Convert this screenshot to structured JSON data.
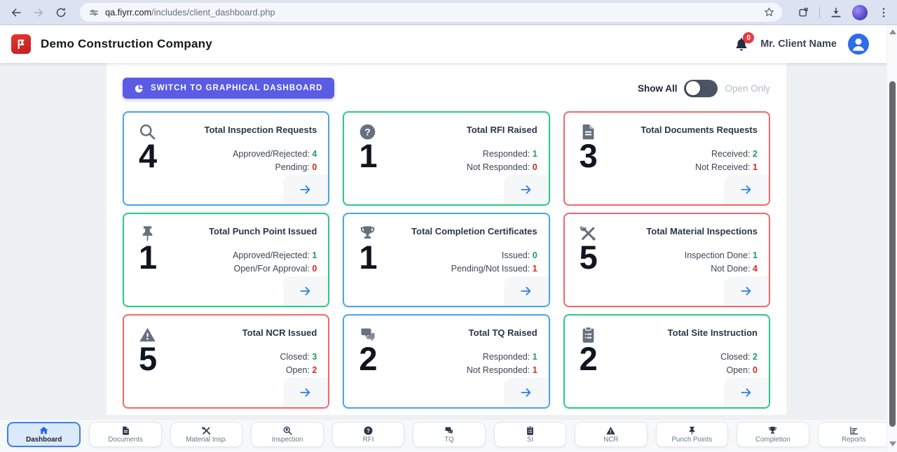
{
  "browser": {
    "url_host": "qa.fiyrr.com",
    "url_path": "/includes/client_dashboard.php"
  },
  "header": {
    "company_name": "Demo Construction Company",
    "notification_count": "0",
    "user_name": "Mr. Client Name"
  },
  "toolbar": {
    "switch_button_label": "SWITCH TO GRAPHICAL DASHBOARD",
    "toggle_left_label": "Show All",
    "toggle_right_label": "Open Only",
    "toggle_state": "Show All"
  },
  "colors": {
    "accent_blue": "#4BA5E5",
    "accent_green": "#2CC985",
    "accent_red": "#F16A6A",
    "value_green": "#17A05E",
    "value_red": "#D92626",
    "button_indigo": "#5A5CE4",
    "arrow_blue": "#2B7DE9"
  },
  "cards": [
    {
      "icon": "search-icon",
      "title": "Total Inspection Requests",
      "count": "4",
      "accent": "#4BA5E5",
      "stats": [
        {
          "label": "Approved/Rejected:",
          "value": "4",
          "color": "#17A05E"
        },
        {
          "label": "Pending:",
          "value": "0",
          "color": "#D92626"
        }
      ]
    },
    {
      "icon": "question-circle-icon",
      "title": "Total RFI Raised",
      "count": "1",
      "accent": "#2CC985",
      "stats": [
        {
          "label": "Responded:",
          "value": "1",
          "color": "#17A05E"
        },
        {
          "label": "Not Responded:",
          "value": "0",
          "color": "#D92626"
        }
      ]
    },
    {
      "icon": "document-icon",
      "title": "Total Documents Requests",
      "count": "3",
      "accent": "#F16A6A",
      "stats": [
        {
          "label": "Received:",
          "value": "2",
          "color": "#17A05E"
        },
        {
          "label": "Not Received:",
          "value": "1",
          "color": "#D92626"
        }
      ]
    },
    {
      "icon": "pushpin-icon",
      "title": "Total Punch Point Issued",
      "count": "1",
      "accent": "#2CC985",
      "stats": [
        {
          "label": "Approved/Rejected:",
          "value": "1",
          "color": "#17A05E"
        },
        {
          "label": "Open/For Approval:",
          "value": "0",
          "color": "#D92626"
        }
      ]
    },
    {
      "icon": "trophy-icon",
      "title": "Total Completion Certificates",
      "count": "1",
      "accent": "#4BA5E5",
      "stats": [
        {
          "label": "Issued:",
          "value": "0",
          "color": "#17A05E"
        },
        {
          "label": "Pending/Not Issued:",
          "value": "1",
          "color": "#D92626"
        }
      ]
    },
    {
      "icon": "tools-icon",
      "title": "Total Material Inspections",
      "count": "5",
      "accent": "#F16A6A",
      "stats": [
        {
          "label": "Inspection Done:",
          "value": "1",
          "color": "#17A05E"
        },
        {
          "label": "Not Done:",
          "value": "4",
          "color": "#D92626"
        }
      ]
    },
    {
      "icon": "warning-icon",
      "title": "Total NCR Issued",
      "count": "5",
      "accent": "#F16A6A",
      "stats": [
        {
          "label": "Closed:",
          "value": "3",
          "color": "#17A05E"
        },
        {
          "label": "Open:",
          "value": "2",
          "color": "#D92626"
        }
      ]
    },
    {
      "icon": "chat-icon",
      "title": "Total TQ Raised",
      "count": "2",
      "accent": "#4BA5E5",
      "stats": [
        {
          "label": "Responded:",
          "value": "1",
          "color": "#17A05E"
        },
        {
          "label": "Not Responded:",
          "value": "1",
          "color": "#D92626"
        }
      ]
    },
    {
      "icon": "clipboard-icon",
      "title": "Total Site Instruction",
      "count": "2",
      "accent": "#2CC985",
      "stats": [
        {
          "label": "Closed:",
          "value": "2",
          "color": "#17A05E"
        },
        {
          "label": "Open:",
          "value": "0",
          "color": "#D92626"
        }
      ]
    }
  ],
  "bottom_nav": {
    "items": [
      {
        "label": "Dashboard",
        "icon": "home-icon",
        "active": true
      },
      {
        "label": "Documents",
        "icon": "document-icon",
        "active": false
      },
      {
        "label": "Material Insp.",
        "icon": "tools-icon",
        "active": false
      },
      {
        "label": "Inspection",
        "icon": "inspection-search-icon",
        "active": false
      },
      {
        "label": "RFI",
        "icon": "question-circle-icon",
        "active": false
      },
      {
        "label": "TQ",
        "icon": "chat-icon",
        "active": false
      },
      {
        "label": "SI",
        "icon": "clipboard-icon",
        "active": false
      },
      {
        "label": "NCR",
        "icon": "warning-icon",
        "active": false
      },
      {
        "label": "Punch Points",
        "icon": "pushpin-icon",
        "active": false
      },
      {
        "label": "Completion",
        "icon": "trophy-icon",
        "active": false
      },
      {
        "label": "Reports",
        "icon": "reports-icon",
        "active": false
      }
    ]
  }
}
